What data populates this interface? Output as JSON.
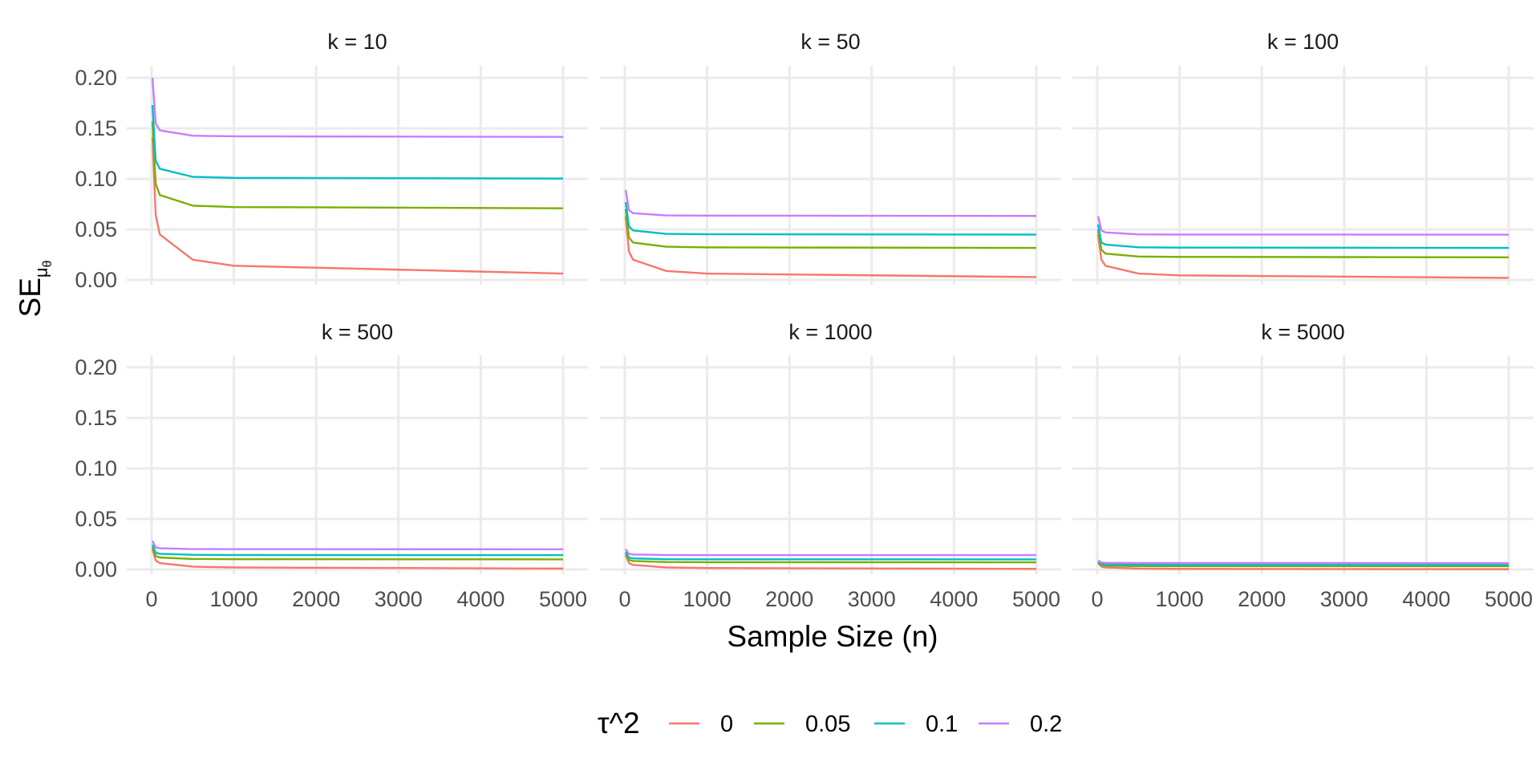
{
  "chart_data": {
    "type": "line",
    "facet_label_prefix": "k = ",
    "xlabel": "Sample Size (n)",
    "ylabel": "SE",
    "ylabel_subscript": "μ",
    "ylabel_subsubscript": "θ",
    "xlim": [
      0,
      5000
    ],
    "ylim": [
      0,
      0.2
    ],
    "x_ticks": [
      "0",
      "1000",
      "2000",
      "3000",
      "4000",
      "5000"
    ],
    "y_ticks": [
      "0.00",
      "0.05",
      "0.10",
      "0.15",
      "0.20"
    ],
    "grid": true,
    "legend": {
      "position": "bottom",
      "title": "τ^2",
      "entries": [
        "0",
        "0.05",
        "0.1",
        "0.2"
      ]
    },
    "colors": [
      "#F8766D",
      "#7CAE00",
      "#00BFC4",
      "#C77CFF"
    ],
    "x": [
      10,
      50,
      100,
      500,
      1000,
      5000
    ],
    "panels": [
      {
        "k": "10",
        "series": [
          {
            "name": "0",
            "values": [
              0.141,
              0.064,
              0.045,
              0.02,
              0.014,
              0.0063
            ]
          },
          {
            "name": "0.05",
            "values": [
              0.157,
              0.095,
              0.084,
              0.0735,
              0.0721,
              0.0709
            ]
          },
          {
            "name": "0.1",
            "values": [
              0.173,
              0.118,
              0.11,
              0.102,
              0.101,
              0.1003
            ]
          },
          {
            "name": "0.2",
            "values": [
              0.2,
              0.155,
              0.148,
              0.1427,
              0.1421,
              0.1415
            ]
          }
        ]
      },
      {
        "k": "50",
        "series": [
          {
            "name": "0",
            "values": [
              0.063,
              0.028,
              0.02,
              0.0089,
              0.0063,
              0.0028
            ]
          },
          {
            "name": "0.05",
            "values": [
              0.07,
              0.042,
              0.037,
              0.0329,
              0.0322,
              0.0317
            ]
          },
          {
            "name": "0.1",
            "values": [
              0.077,
              0.053,
              0.049,
              0.0456,
              0.0452,
              0.0449
            ]
          },
          {
            "name": "0.2",
            "values": [
              0.089,
              0.069,
              0.066,
              0.0638,
              0.0636,
              0.0633
            ]
          }
        ]
      },
      {
        "k": "100",
        "series": [
          {
            "name": "0",
            "values": [
              0.045,
              0.02,
              0.014,
              0.0063,
              0.0045,
              0.002
            ]
          },
          {
            "name": "0.05",
            "values": [
              0.05,
              0.03,
              0.026,
              0.0232,
              0.0228,
              0.0224
            ]
          },
          {
            "name": "0.1",
            "values": [
              0.055,
              0.037,
              0.035,
              0.0323,
              0.032,
              0.0317
            ]
          },
          {
            "name": "0.2",
            "values": [
              0.063,
              0.049,
              0.047,
              0.0451,
              0.0449,
              0.0448
            ]
          }
        ]
      },
      {
        "k": "500",
        "series": [
          {
            "name": "0",
            "values": [
              0.02,
              0.0089,
              0.0063,
              0.0028,
              0.002,
              0.0009
            ]
          },
          {
            "name": "0.05",
            "values": [
              0.022,
              0.0134,
              0.0118,
              0.0104,
              0.0102,
              0.01
            ]
          },
          {
            "name": "0.1",
            "values": [
              0.0245,
              0.0166,
              0.0155,
              0.0145,
              0.0143,
              0.0142
            ]
          },
          {
            "name": "0.2",
            "values": [
              0.0283,
              0.0219,
              0.021,
              0.0202,
              0.0201,
              0.02
            ]
          }
        ]
      },
      {
        "k": "1000",
        "series": [
          {
            "name": "0",
            "values": [
              0.0141,
              0.0063,
              0.0045,
              0.002,
              0.0014,
              0.0006
            ]
          },
          {
            "name": "0.05",
            "values": [
              0.0157,
              0.0095,
              0.0084,
              0.0074,
              0.0072,
              0.0071
            ]
          },
          {
            "name": "0.1",
            "values": [
              0.0173,
              0.0118,
              0.011,
              0.0102,
              0.0101,
              0.01
            ]
          },
          {
            "name": "0.2",
            "values": [
              0.02,
              0.0155,
              0.0148,
              0.0143,
              0.0142,
              0.0142
            ]
          }
        ]
      },
      {
        "k": "5000",
        "series": [
          {
            "name": "0",
            "values": [
              0.0063,
              0.0028,
              0.002,
              0.0009,
              0.0006,
              0.0003
            ]
          },
          {
            "name": "0.05",
            "values": [
              0.007,
              0.0042,
              0.0037,
              0.0033,
              0.0032,
              0.0032
            ]
          },
          {
            "name": "0.1",
            "values": [
              0.0077,
              0.0053,
              0.0049,
              0.0046,
              0.0045,
              0.0045
            ]
          },
          {
            "name": "0.2",
            "values": [
              0.0089,
              0.0069,
              0.0066,
              0.0064,
              0.0064,
              0.0063
            ]
          }
        ]
      }
    ]
  }
}
